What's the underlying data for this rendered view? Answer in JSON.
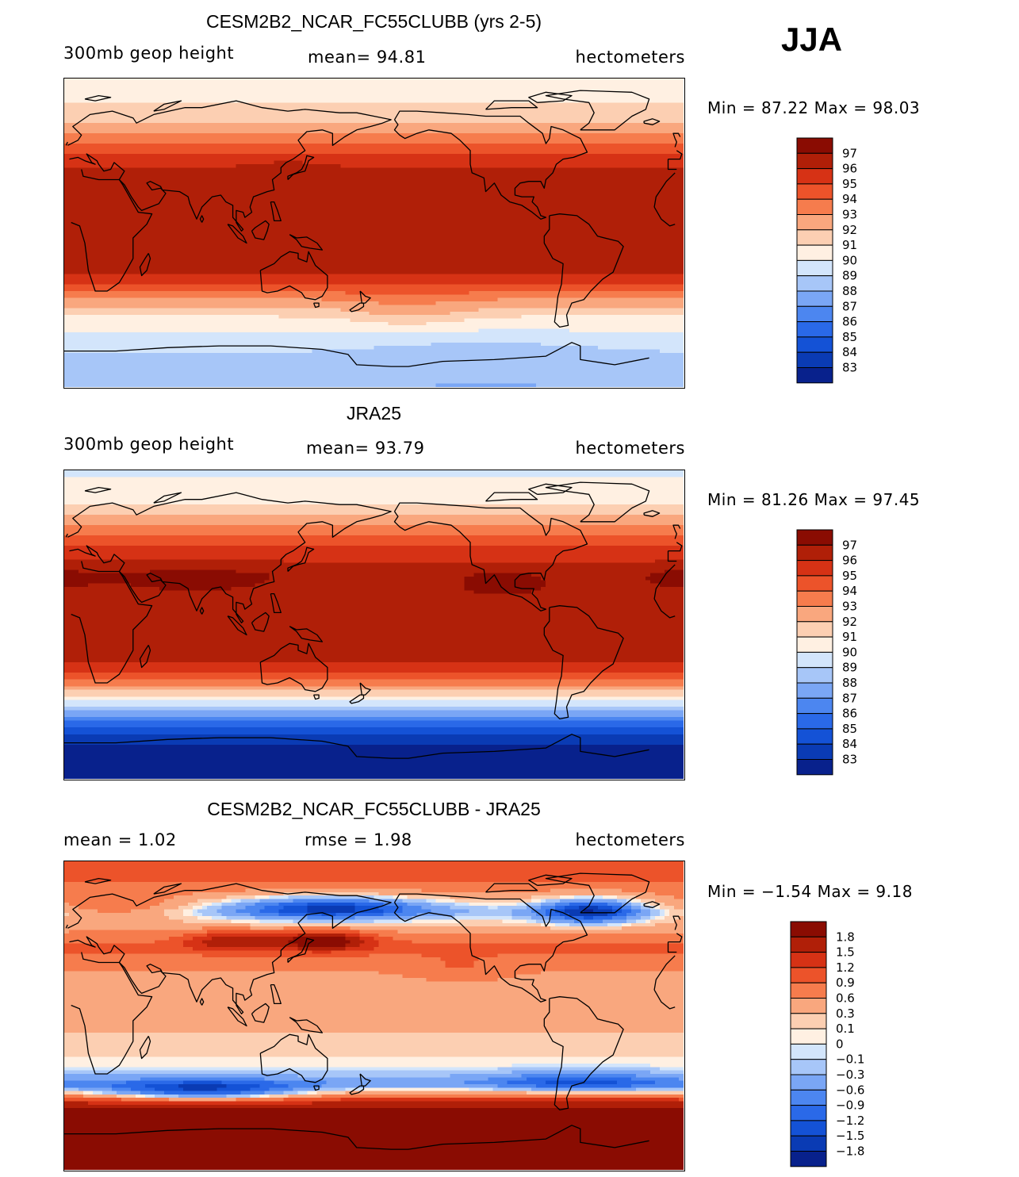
{
  "season": "JJA",
  "units": "hectometers",
  "colors": {
    "height_scale": [
      "#08218c",
      "#0a3bb4",
      "#1452d6",
      "#2a69e8",
      "#4c86f0",
      "#7aa6f5",
      "#a7c6f8",
      "#d3e5fb",
      "#fff0e2",
      "#fccfb2",
      "#f9a77e",
      "#f67c4d",
      "#ec532a",
      "#d63215",
      "#b01f08",
      "#8a0c02"
    ],
    "diff_scale": [
      "#08218c",
      "#0a3bb4",
      "#1452d6",
      "#2a69e8",
      "#4c86f0",
      "#7aa6f5",
      "#a7c6f8",
      "#d3e5fb",
      "#fff0e2",
      "#fccfb2",
      "#f9a77e",
      "#f67c4d",
      "#ec532a",
      "#d63215",
      "#b01f08",
      "#8a0c02"
    ],
    "coast": "#000000"
  },
  "panels": [
    {
      "title": "CESM2B2_NCAR_FC55CLUBB (yrs 2-5)",
      "left_label": "300mb  geop height",
      "center_label": "mean=  94.81",
      "units_label": "hectometers",
      "min_max": "Min =   87.22  Max =   98.03",
      "colorbar_labels": [
        "97",
        "96",
        "95",
        "94",
        "93",
        "92",
        "91",
        "90",
        "89",
        "88",
        "87",
        "86",
        "85",
        "84",
        "83"
      ],
      "field": "model"
    },
    {
      "title": "JRA25",
      "left_label": "300mb  geop height",
      "center_label": "mean=  93.79",
      "units_label": "hectometers",
      "min_max": "Min =   81.26  Max =   97.45",
      "colorbar_labels": [
        "97",
        "96",
        "95",
        "94",
        "93",
        "92",
        "91",
        "90",
        "89",
        "88",
        "87",
        "86",
        "85",
        "84",
        "83"
      ],
      "field": "obs"
    },
    {
      "title": "CESM2B2_NCAR_FC55CLUBB - JRA25",
      "left_label": "mean =     1.02",
      "center_label": "rmse =     1.98",
      "units_label": "hectometers",
      "min_max": "Min =  −1.54  Max =     9.18",
      "colorbar_labels": [
        "1.8",
        "1.5",
        "1.2",
        "0.9",
        "0.6",
        "0.3",
        "0.1",
        "0",
        "−0.1",
        "−0.3",
        "−0.6",
        "−0.9",
        "−1.2",
        "−1.5",
        "−1.8"
      ],
      "field": "diff"
    }
  ],
  "chart_data": [
    {
      "type": "heatmap",
      "title": "CESM2B2_NCAR_FC55CLUBB (yrs 2-5)",
      "variable": "300mb geop height",
      "units": "hectometers",
      "mean": 94.81,
      "min": 87.22,
      "max": 98.03,
      "contour_levels": [
        83,
        84,
        85,
        86,
        87,
        88,
        89,
        90,
        91,
        92,
        93,
        94,
        95,
        96,
        97
      ],
      "lat_range": [
        -90,
        90
      ],
      "lon_range": [
        0,
        360
      ],
      "zonal_profile": {
        "lat": [
          90,
          80,
          70,
          60,
          50,
          40,
          30,
          20,
          10,
          0,
          -10,
          -20,
          -30,
          -40,
          -50,
          -60,
          -70,
          -80,
          -90
        ],
        "value": [
          91.0,
          90.9,
          91.2,
          92.5,
          94.2,
          95.8,
          96.6,
          96.8,
          96.9,
          96.9,
          96.9,
          96.6,
          95.2,
          92.7,
          90.8,
          89.8,
          89.0,
          88.3,
          88.0
        ]
      }
    },
    {
      "type": "heatmap",
      "title": "JRA25",
      "variable": "300mb geop height",
      "units": "hectometers",
      "mean": 93.79,
      "min": 81.26,
      "max": 97.45,
      "contour_levels": [
        83,
        84,
        85,
        86,
        87,
        88,
        89,
        90,
        91,
        92,
        93,
        94,
        95,
        96,
        97
      ],
      "lat_range": [
        -90,
        90
      ],
      "lon_range": [
        0,
        360
      ],
      "zonal_profile": {
        "lat": [
          90,
          80,
          70,
          60,
          50,
          40,
          30,
          20,
          10,
          0,
          -10,
          -20,
          -30,
          -40,
          -50,
          -60,
          -70,
          -80,
          -90
        ],
        "value": [
          89.5,
          90.5,
          91.0,
          92.5,
          94.5,
          95.6,
          96.6,
          96.7,
          96.6,
          96.6,
          96.6,
          96.2,
          94.8,
          91.6,
          88.0,
          84.8,
          83.0,
          82.0,
          81.5
        ]
      }
    },
    {
      "type": "heatmap",
      "title": "CESM2B2_NCAR_FC55CLUBB - JRA25",
      "variable": "difference",
      "units": "hectometers",
      "mean": 1.02,
      "rmse": 1.98,
      "min": -1.54,
      "max": 9.18,
      "contour_levels": [
        -1.8,
        -1.5,
        -1.2,
        -0.9,
        -0.6,
        -0.3,
        -0.1,
        0,
        0.1,
        0.3,
        0.6,
        0.9,
        1.2,
        1.5,
        1.8
      ],
      "lat_range": [
        -90,
        90
      ],
      "lon_range": [
        0,
        360
      ],
      "zonal_profile": {
        "lat": [
          90,
          80,
          70,
          60,
          50,
          40,
          30,
          20,
          10,
          0,
          -10,
          -20,
          -30,
          -40,
          -50,
          -60,
          -70,
          -80,
          -90
        ],
        "value": [
          1.0,
          1.0,
          0.5,
          -0.2,
          0.5,
          1.0,
          0.7,
          0.4,
          0.4,
          0.4,
          0.3,
          0.2,
          0.0,
          -0.5,
          1.5,
          2.5,
          4.0,
          6.0,
          7.0
        ]
      }
    }
  ]
}
